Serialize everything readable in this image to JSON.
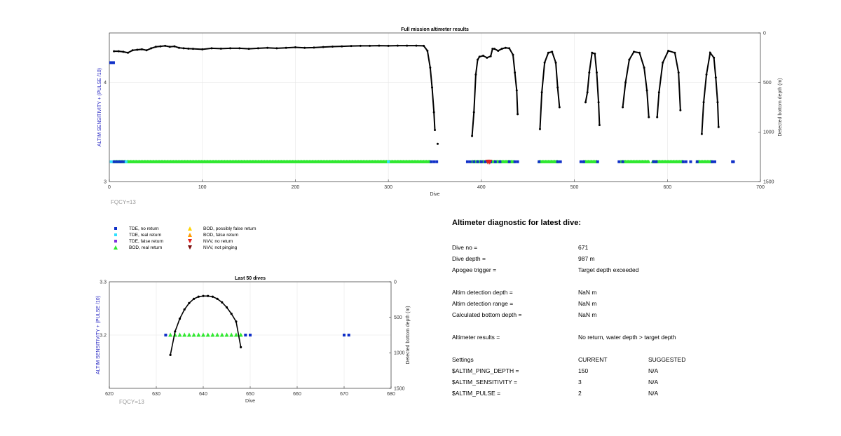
{
  "chart_data": [
    {
      "type": "scatter",
      "title": "Full mission altimeter results",
      "xlabel": "Dive",
      "ylabel_left": "ALTIM SENSITIVITY + (PULSE /10)",
      "ylabel_right": "Detected bottom depth (m)",
      "xlim": [
        0,
        700
      ],
      "ylim_left": [
        3,
        4.5
      ],
      "ylim_right": [
        1500,
        0
      ],
      "x_ticks": [
        "0",
        "100",
        "200",
        "300",
        "400",
        "500",
        "600",
        "700"
      ],
      "y_ticks_left": [
        "3",
        "4"
      ],
      "y_ticks_right": [
        "0",
        "500",
        "1000",
        "1500"
      ],
      "grid": true,
      "annotation": "FQCY=13",
      "bottom_depth_segments": [
        [
          [
            5,
            185
          ],
          [
            10,
            185
          ],
          [
            15,
            190
          ],
          [
            20,
            200
          ],
          [
            25,
            175
          ],
          [
            30,
            170
          ],
          [
            35,
            165
          ],
          [
            40,
            175
          ],
          [
            45,
            155
          ],
          [
            50,
            140
          ],
          [
            55,
            135
          ],
          [
            60,
            130
          ],
          [
            65,
            140
          ],
          [
            70,
            135
          ],
          [
            75,
            150
          ],
          [
            80,
            155
          ],
          [
            85,
            158
          ],
          [
            90,
            160
          ],
          [
            100,
            165
          ],
          [
            110,
            155
          ],
          [
            120,
            158
          ],
          [
            130,
            155
          ],
          [
            140,
            155
          ],
          [
            150,
            160
          ],
          [
            160,
            155
          ],
          [
            170,
            150
          ],
          [
            180,
            155
          ],
          [
            190,
            150
          ],
          [
            200,
            145
          ],
          [
            210,
            150
          ],
          [
            220,
            148
          ],
          [
            230,
            142
          ],
          [
            240,
            138
          ],
          [
            250,
            135
          ],
          [
            260,
            132
          ],
          [
            270,
            130
          ],
          [
            280,
            130
          ],
          [
            290,
            128
          ],
          [
            300,
            130
          ],
          [
            310,
            128
          ],
          [
            320,
            128
          ],
          [
            330,
            128
          ],
          [
            338,
            130
          ],
          [
            342,
            180
          ],
          [
            345,
            350
          ],
          [
            347,
            550
          ],
          [
            349,
            800
          ],
          [
            350,
            980
          ]
        ],
        [
          [
            353,
            1120
          ]
        ],
        [
          [
            390,
            1040
          ],
          [
            392,
            800
          ],
          [
            394,
            420
          ],
          [
            396,
            270
          ],
          [
            398,
            240
          ],
          [
            402,
            230
          ],
          [
            406,
            250
          ],
          [
            410,
            235
          ],
          [
            412,
            160
          ]
        ],
        [
          [
            414,
            160
          ],
          [
            418,
            180
          ],
          [
            422,
            160
          ],
          [
            426,
            150
          ],
          [
            430,
            155
          ],
          [
            434,
            220
          ],
          [
            436,
            400
          ],
          [
            438,
            580
          ],
          [
            439,
            820
          ]
        ],
        [
          [
            463,
            970
          ],
          [
            465,
            600
          ],
          [
            468,
            300
          ],
          [
            472,
            200
          ],
          [
            476,
            190
          ],
          [
            480,
            300
          ],
          [
            482,
            550
          ],
          [
            484,
            750
          ]
        ],
        [
          [
            512,
            700
          ],
          [
            514,
            600
          ],
          [
            516,
            400
          ],
          [
            519,
            200
          ],
          [
            522,
            210
          ],
          [
            524,
            400
          ],
          [
            526,
            700
          ],
          [
            527,
            930
          ]
        ],
        [
          [
            552,
            750
          ],
          [
            555,
            500
          ],
          [
            559,
            270
          ],
          [
            564,
            190
          ],
          [
            570,
            200
          ],
          [
            575,
            350
          ],
          [
            578,
            580
          ],
          [
            580,
            850
          ]
        ],
        [
          [
            589,
            850
          ],
          [
            591,
            600
          ],
          [
            595,
            300
          ],
          [
            601,
            180
          ],
          [
            608,
            200
          ],
          [
            612,
            400
          ],
          [
            614,
            780
          ]
        ],
        [
          [
            637,
            1020
          ],
          [
            639,
            700
          ],
          [
            642,
            420
          ],
          [
            646,
            200
          ],
          [
            650,
            250
          ],
          [
            652,
            450
          ],
          [
            654,
            700
          ],
          [
            655,
            950
          ]
        ]
      ],
      "return_markers": {
        "level": 3.2,
        "bod_real_return_ranges": [
          [
            5,
            345
          ],
          [
            390,
            435
          ],
          [
            462,
            482
          ],
          [
            510,
            524
          ],
          [
            550,
            580
          ],
          [
            584,
            617
          ],
          [
            632,
            648
          ]
        ],
        "tde_no_return_x": [
          5,
          8,
          11,
          13,
          16,
          346,
          349,
          352,
          385,
          388,
          392,
          396,
          400,
          404,
          410,
          415,
          420,
          430,
          436,
          439,
          462,
          482,
          485,
          507,
          510,
          525,
          548,
          552,
          585,
          588,
          617,
          620,
          625,
          632,
          648,
          651,
          670,
          671
        ],
        "tde_real_return_x": [
          2,
          18,
          300
        ],
        "nvv_no_return_x": [
          407,
          409
        ],
        "tde_pos_sens_level": 4.2,
        "tde_pos_sens_x": [
          0,
          6
        ]
      }
    },
    {
      "type": "scatter",
      "title": "Last 50 dives",
      "xlabel": "Dive",
      "ylabel_left": "ALTIM SENSITIVITY + (PULSE /10)",
      "ylabel_right": "Detected bottom depth (m)",
      "xlim": [
        620,
        680
      ],
      "ylim_left": [
        3.1,
        3.3
      ],
      "ylim_right": [
        1500,
        0
      ],
      "x_ticks": [
        "620",
        "630",
        "640",
        "650",
        "660",
        "670",
        "680"
      ],
      "y_ticks_left": [
        "3.2",
        "3.3"
      ],
      "y_ticks_right": [
        "0",
        "500",
        "1000",
        "1500"
      ],
      "grid": true,
      "annotation": "FQCY=13",
      "bottom_depth_points": [
        [
          633,
          1030
        ],
        [
          634,
          700
        ],
        [
          635,
          520
        ],
        [
          636,
          390
        ],
        [
          637,
          300
        ],
        [
          638,
          240
        ],
        [
          639,
          210
        ],
        [
          640,
          200
        ],
        [
          641,
          200
        ],
        [
          642,
          210
        ],
        [
          643,
          240
        ],
        [
          644,
          290
        ],
        [
          645,
          360
        ],
        [
          646,
          450
        ],
        [
          647,
          560
        ],
        [
          648,
          920
        ]
      ],
      "markers": {
        "level": 3.2,
        "tde_no_return_x": [
          632,
          649,
          650,
          670,
          671
        ],
        "bod_real_return_x": [
          633,
          634,
          635,
          636,
          637,
          638,
          639,
          640,
          641,
          642,
          643,
          644,
          645,
          646,
          647,
          648
        ]
      }
    }
  ],
  "legend": {
    "items": [
      {
        "label": "TDE, no return",
        "color": "#1030c8",
        "shape": "square"
      },
      {
        "label": "TDE, real return",
        "color": "#30e0ff",
        "shape": "square"
      },
      {
        "label": "TDE, false return",
        "color": "#8030e0",
        "shape": "square"
      },
      {
        "label": "BOD, real return",
        "color": "#30e830",
        "shape": "triangle-up"
      },
      {
        "label": "BOD, possibly false return",
        "color": "#ffd400",
        "shape": "triangle-up"
      },
      {
        "label": "BOD, false return",
        "color": "#ff9a00",
        "shape": "triangle-up"
      },
      {
        "label": "NVV, no return",
        "color": "#e02020",
        "shape": "triangle-down"
      },
      {
        "label": "NVV, not pinging",
        "color": "#7a0a0a",
        "shape": "triangle-down"
      }
    ]
  },
  "diagnostic": {
    "title": "Altimeter diagnostic for latest dive:",
    "dive_no_label": "Dive no =",
    "dive_no_value": "671",
    "dive_depth_label": "Dive depth =",
    "dive_depth_value": "987 m",
    "apogee_label": "Apogee trigger =",
    "apogee_value": "Target depth exceeded",
    "det_depth_label": "Altim detection depth =",
    "det_depth_value": "NaN m",
    "det_range_label": "Altim detection range =",
    "det_range_value": "NaN m",
    "calc_bottom_label": "Calculated bottom depth =",
    "calc_bottom_value": "NaN m",
    "results_label": "Altimeter results =",
    "results_value": "No return, water depth > target depth",
    "settings_label": "Settings",
    "current_label": "CURRENT",
    "suggested_label": "SUGGESTED",
    "ping_depth_label": "$ALTIM_PING_DEPTH =",
    "ping_depth_current": "150",
    "ping_depth_suggested": "N/A",
    "sensitivity_label": "$ALTIM_SENSITIVITY =",
    "sensitivity_current": "3",
    "sensitivity_suggested": "N/A",
    "pulse_label": "$ALTIM_PULSE =",
    "pulse_current": "2",
    "pulse_suggested": "N/A"
  }
}
